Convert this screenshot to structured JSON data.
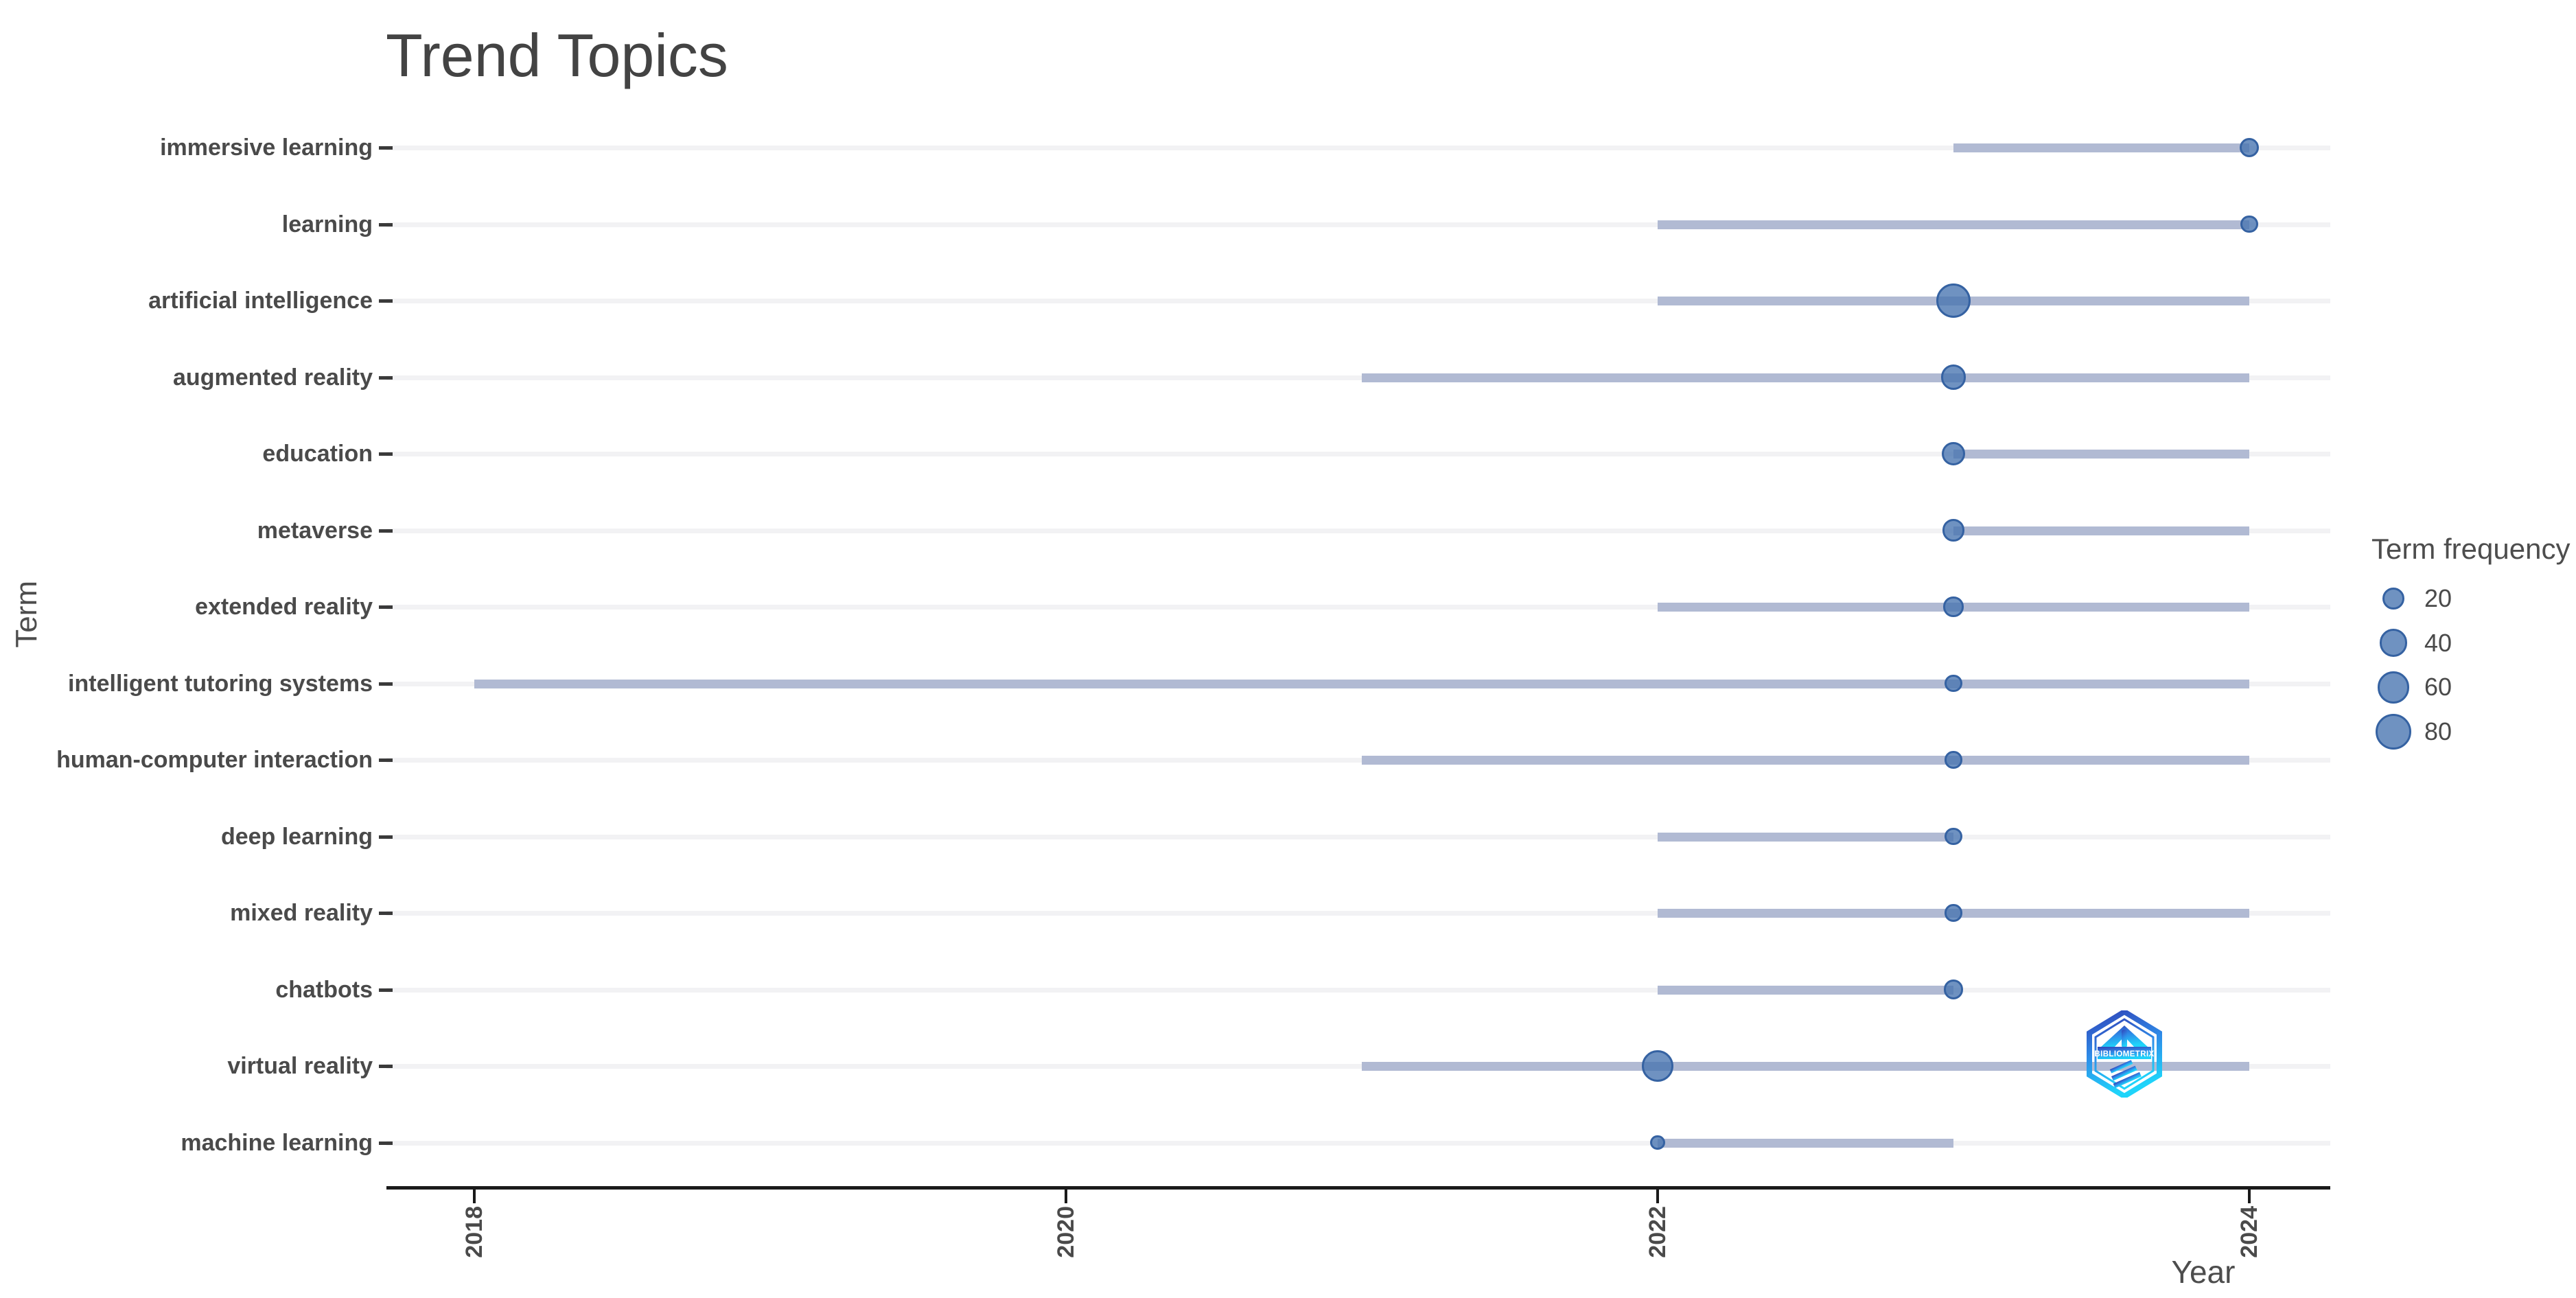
{
  "title": "Trend Topics",
  "axes": {
    "x_label": "Year",
    "y_label": "Term"
  },
  "legend": {
    "title": "Term frequency",
    "labels": [
      "20",
      "40",
      "60",
      "80"
    ]
  },
  "watermark": {
    "text": "BIBLIOMETRIX"
  },
  "colors": {
    "dot_fill": "#6e95c2",
    "dot_stroke": "#3562a2",
    "timespan_line": "#b1bad3",
    "gridline": "#f2f2f4",
    "axis_line": "#1a1a1a",
    "label_text": "#4a4a4a",
    "title_text": "#434343",
    "logo_gradient_top": "#3144b8",
    "logo_gradient_mid": "#2e8be8",
    "logo_gradient_bottom": "#1fd4fa"
  },
  "chart_data": {
    "type": "scatter",
    "variant": "dumbbell-timeline",
    "title": "Trend Topics",
    "xlabel": "Year",
    "ylabel": "Term",
    "grid": "horizontal-only",
    "x_range": [
      2017.7,
      2024.3
    ],
    "x_ticks": [
      2018,
      2020,
      2022,
      2024
    ],
    "x_tick_labels": [
      "2018",
      "2020",
      "2022",
      "2024"
    ],
    "legend": {
      "title": "Term frequency",
      "values": [
        20,
        40,
        60,
        80
      ],
      "position": "right"
    },
    "rows": [
      {
        "term": "immersive learning",
        "freq": 11,
        "year_start": 2023,
        "year_end": 2024,
        "year_peak": 2024
      },
      {
        "term": "learning",
        "freq": 7,
        "year_start": 2022,
        "year_end": 2024,
        "year_peak": 2024
      },
      {
        "term": "artificial intelligence",
        "freq": 72,
        "year_start": 2022,
        "year_end": 2024,
        "year_peak": 2023
      },
      {
        "term": "augmented reality",
        "freq": 27,
        "year_start": 2021,
        "year_end": 2024,
        "year_peak": 2023
      },
      {
        "term": "education",
        "freq": 22,
        "year_start": 2023,
        "year_end": 2024,
        "year_peak": 2023
      },
      {
        "term": "metaverse",
        "freq": 18,
        "year_start": 2023,
        "year_end": 2024,
        "year_peak": 2023
      },
      {
        "term": "extended reality",
        "freq": 13,
        "year_start": 2022,
        "year_end": 2024,
        "year_peak": 2023
      },
      {
        "term": "intelligent tutoring systems",
        "freq": 7,
        "year_start": 2018,
        "year_end": 2024,
        "year_peak": 2023
      },
      {
        "term": "human-computer interaction",
        "freq": 7,
        "year_start": 2021,
        "year_end": 2024,
        "year_peak": 2023
      },
      {
        "term": "deep learning",
        "freq": 7,
        "year_start": 2022,
        "year_end": 2023,
        "year_peak": 2023
      },
      {
        "term": "mixed reality",
        "freq": 7,
        "year_start": 2022,
        "year_end": 2024,
        "year_peak": 2023
      },
      {
        "term": "chatbots",
        "freq": 11,
        "year_start": 2022,
        "year_end": 2023,
        "year_peak": 2023
      },
      {
        "term": "virtual reality",
        "freq": 57,
        "year_start": 2021,
        "year_end": 2024,
        "year_peak": 2022
      },
      {
        "term": "machine learning",
        "freq": 3,
        "year_start": 2022,
        "year_end": 2023,
        "year_peak": 2022
      }
    ]
  }
}
